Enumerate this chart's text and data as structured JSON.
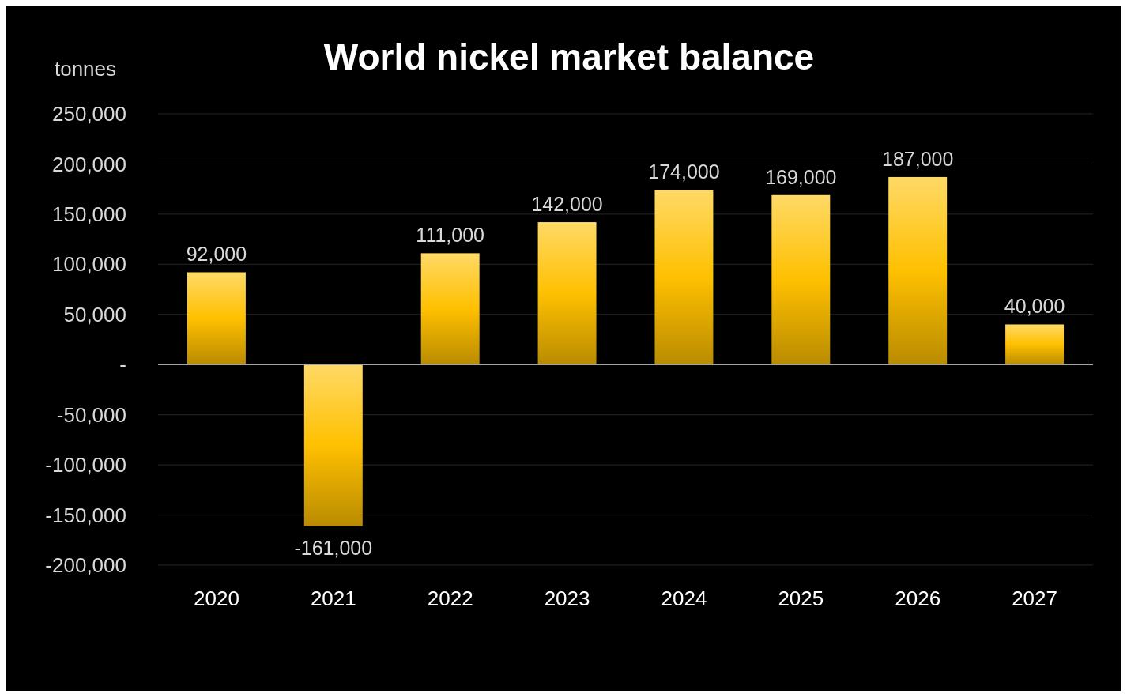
{
  "chart_data": {
    "type": "bar",
    "title": "World nickel market balance",
    "ylabel": "tonnes",
    "categories": [
      "2020",
      "2021",
      "2022",
      "2023",
      "2024",
      "2025",
      "2026",
      "2027"
    ],
    "values": [
      92000,
      -161000,
      111000,
      142000,
      174000,
      169000,
      187000,
      40000
    ],
    "value_labels": [
      "92,000",
      "-161,000",
      "111,000",
      "142,000",
      "174,000",
      "169,000",
      "187,000",
      "40,000"
    ],
    "color": "#ffc000",
    "ylim": [
      -200000,
      250000
    ],
    "yticks": [
      {
        "value": -200000,
        "label": "-200,000"
      },
      {
        "value": -150000,
        "label": "-150,000"
      },
      {
        "value": -100000,
        "label": "-100,000"
      },
      {
        "value": -50000,
        "label": "-50,000"
      },
      {
        "value": 0,
        "label": "-"
      },
      {
        "value": 50000,
        "label": "50,000"
      },
      {
        "value": 100000,
        "label": "100,000"
      },
      {
        "value": 150000,
        "label": "150,000"
      },
      {
        "value": 200000,
        "label": "200,000"
      },
      {
        "value": 250000,
        "label": "250,000"
      }
    ],
    "grid": "y"
  }
}
